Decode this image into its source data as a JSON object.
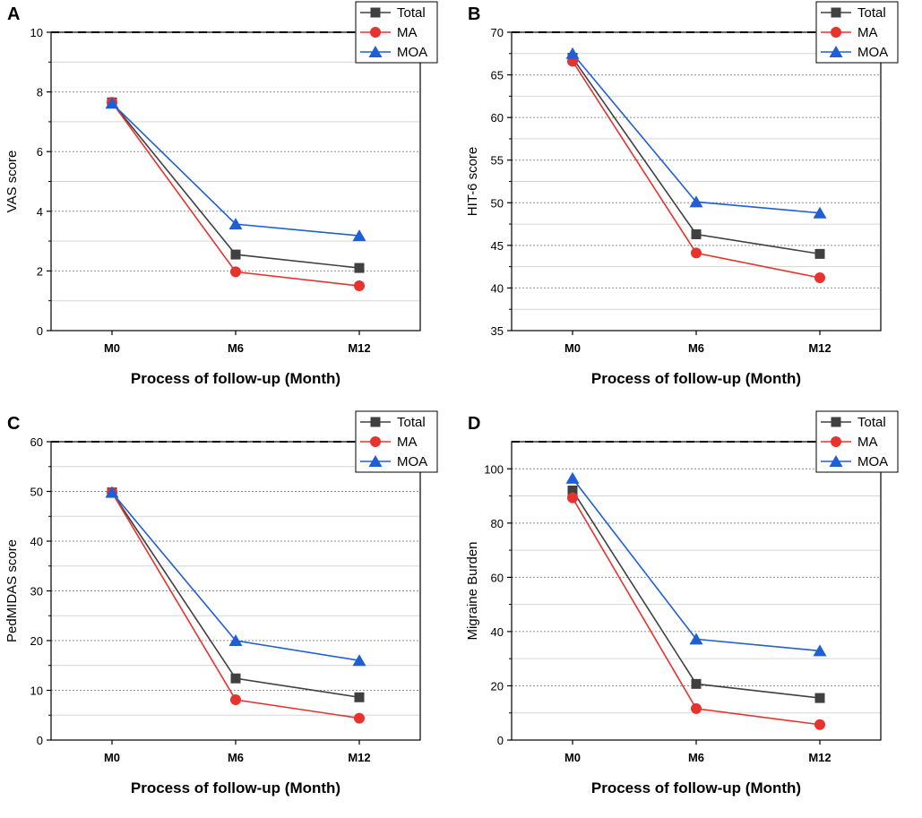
{
  "figure": {
    "panels": [
      "A",
      "B",
      "C",
      "D"
    ]
  },
  "series_style": {
    "Total": {
      "color": "#404040",
      "marker": "square"
    },
    "MA": {
      "color": "#e8322d",
      "marker": "circle"
    },
    "MOA": {
      "color": "#1f5fd6",
      "marker": "triangle"
    }
  },
  "chart_data": [
    {
      "type": "line",
      "panel_label": "A",
      "categories": [
        "M0",
        "M6",
        "M12"
      ],
      "series": [
        {
          "name": "Total",
          "values": [
            7.65,
            2.55,
            2.1
          ]
        },
        {
          "name": "MA",
          "values": [
            7.65,
            1.97,
            1.5
          ]
        },
        {
          "name": "MOA",
          "values": [
            7.62,
            3.57,
            3.18
          ]
        }
      ],
      "xlabel": "Process of follow-up (Month)",
      "ylabel": "VAS score",
      "ylim": [
        0,
        10
      ],
      "yticks": [
        0,
        2,
        4,
        6,
        8,
        10
      ],
      "ref_line": 10,
      "legend_position": "top-right"
    },
    {
      "type": "line",
      "panel_label": "B",
      "categories": [
        "M0",
        "M6",
        "M12"
      ],
      "series": [
        {
          "name": "Total",
          "values": [
            67.0,
            46.3,
            44.0
          ]
        },
        {
          "name": "MA",
          "values": [
            66.6,
            44.1,
            41.2
          ]
        },
        {
          "name": "MOA",
          "values": [
            67.5,
            50.1,
            48.8
          ]
        }
      ],
      "xlabel": "Process of follow-up (Month)",
      "ylabel": "HIT-6 score",
      "ylim": [
        35,
        70
      ],
      "yticks": [
        35,
        40,
        45,
        50,
        55,
        60,
        65,
        70
      ],
      "ref_line": 70,
      "legend_position": "top-right"
    },
    {
      "type": "line",
      "panel_label": "C",
      "categories": [
        "M0",
        "M6",
        "M12"
      ],
      "series": [
        {
          "name": "Total",
          "values": [
            49.8,
            12.4,
            8.6
          ]
        },
        {
          "name": "MA",
          "values": [
            49.8,
            8.1,
            4.4
          ]
        },
        {
          "name": "MOA",
          "values": [
            49.8,
            20.0,
            16.0
          ]
        }
      ],
      "xlabel": "Process of follow-up (Month)",
      "ylabel": "PedMIDAS score",
      "ylim": [
        0,
        60
      ],
      "yticks": [
        0,
        10,
        20,
        30,
        40,
        50,
        60
      ],
      "ref_line": 60,
      "legend_position": "top-right"
    },
    {
      "type": "line",
      "panel_label": "D",
      "categories": [
        "M0",
        "M6",
        "M12"
      ],
      "series": [
        {
          "name": "Total",
          "values": [
            92.0,
            20.7,
            15.5
          ]
        },
        {
          "name": "MA",
          "values": [
            89.3,
            11.6,
            5.7
          ]
        },
        {
          "name": "MOA",
          "values": [
            96.5,
            37.2,
            32.9
          ]
        }
      ],
      "xlabel": "Process of follow-up (Month)",
      "ylabel": "Migraine Burden",
      "ylim": [
        0,
        110
      ],
      "yticks": [
        0,
        20,
        40,
        60,
        80,
        100
      ],
      "ref_line": 110,
      "legend_position": "top-right"
    }
  ]
}
